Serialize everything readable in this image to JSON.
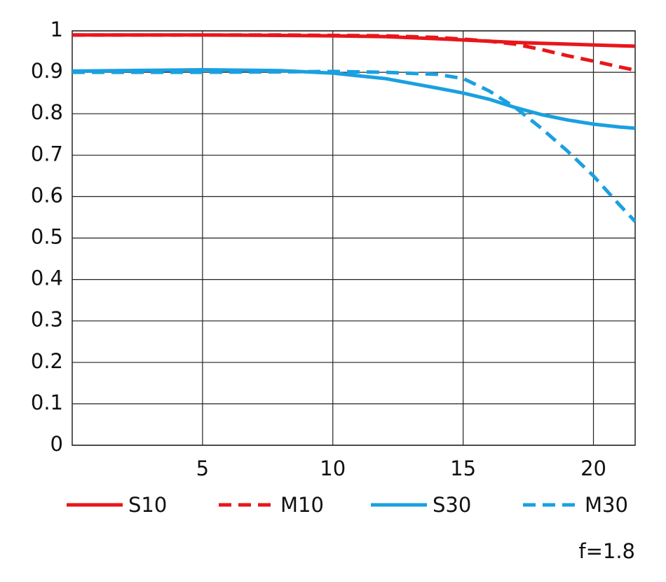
{
  "chart_data": {
    "type": "line",
    "x": [
      0,
      5,
      8,
      10,
      12,
      14,
      15,
      16,
      17,
      18,
      19,
      20,
      21,
      21.6
    ],
    "series": [
      {
        "name": "S10",
        "color": "#e8161b",
        "style": "solid",
        "values": [
          0.99,
          0.99,
          0.989,
          0.988,
          0.986,
          0.981,
          0.978,
          0.975,
          0.972,
          0.97,
          0.968,
          0.966,
          0.964,
          0.963
        ]
      },
      {
        "name": "M10",
        "color": "#e8161b",
        "style": "dashed",
        "values": [
          0.99,
          0.99,
          0.99,
          0.989,
          0.988,
          0.984,
          0.98,
          0.975,
          0.968,
          0.955,
          0.94,
          0.927,
          0.913,
          0.905
        ]
      },
      {
        "name": "S30",
        "color": "#1aa0e0",
        "style": "solid",
        "values": [
          0.903,
          0.906,
          0.904,
          0.898,
          0.885,
          0.862,
          0.85,
          0.835,
          0.815,
          0.798,
          0.785,
          0.775,
          0.768,
          0.765
        ]
      },
      {
        "name": "M30",
        "color": "#1aa0e0",
        "style": "dashed",
        "values": [
          0.9,
          0.9,
          0.901,
          0.902,
          0.9,
          0.895,
          0.885,
          0.855,
          0.815,
          0.765,
          0.71,
          0.65,
          0.58,
          0.54
        ]
      }
    ],
    "xlim": [
      0,
      21.6
    ],
    "ylim": [
      0,
      1
    ],
    "xticks": [
      5,
      10,
      15,
      20
    ],
    "yticks": [
      0,
      0.1,
      0.2,
      0.3,
      0.4,
      0.5,
      0.6,
      0.7,
      0.8,
      0.9,
      1
    ],
    "grid": true,
    "annotation": "f=1.8"
  }
}
